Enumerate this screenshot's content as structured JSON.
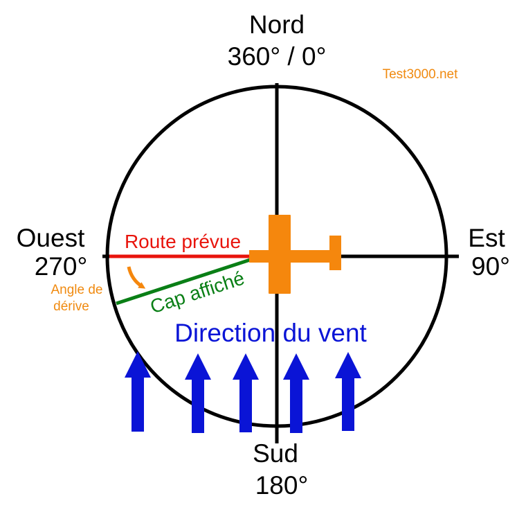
{
  "compass": {
    "north": {
      "name": "Nord",
      "degrees": "360° / 0°"
    },
    "east": {
      "name": "Est",
      "degrees": "90°"
    },
    "south": {
      "name": "Sud",
      "degrees": "180°"
    },
    "west": {
      "name": "Ouest",
      "degrees": "270°"
    }
  },
  "watermark": "Test3000.net",
  "labels": {
    "planned_route": "Route prévue",
    "heading": "Cap affiché",
    "drift_angle_line1": "Angle de",
    "drift_angle_line2": "dérive",
    "wind_direction": "Direction du vent"
  },
  "colors": {
    "circle": "#000000",
    "planned_route": "#e8140c",
    "heading": "#0a7f16",
    "aircraft": "#f5870d",
    "wind": "#0a14d6",
    "watermark": "#f08a10"
  },
  "icons": {
    "aircraft": "airplane-icon",
    "wind_arrows": "arrow-up-icon"
  },
  "wind_arrow_count": 5
}
